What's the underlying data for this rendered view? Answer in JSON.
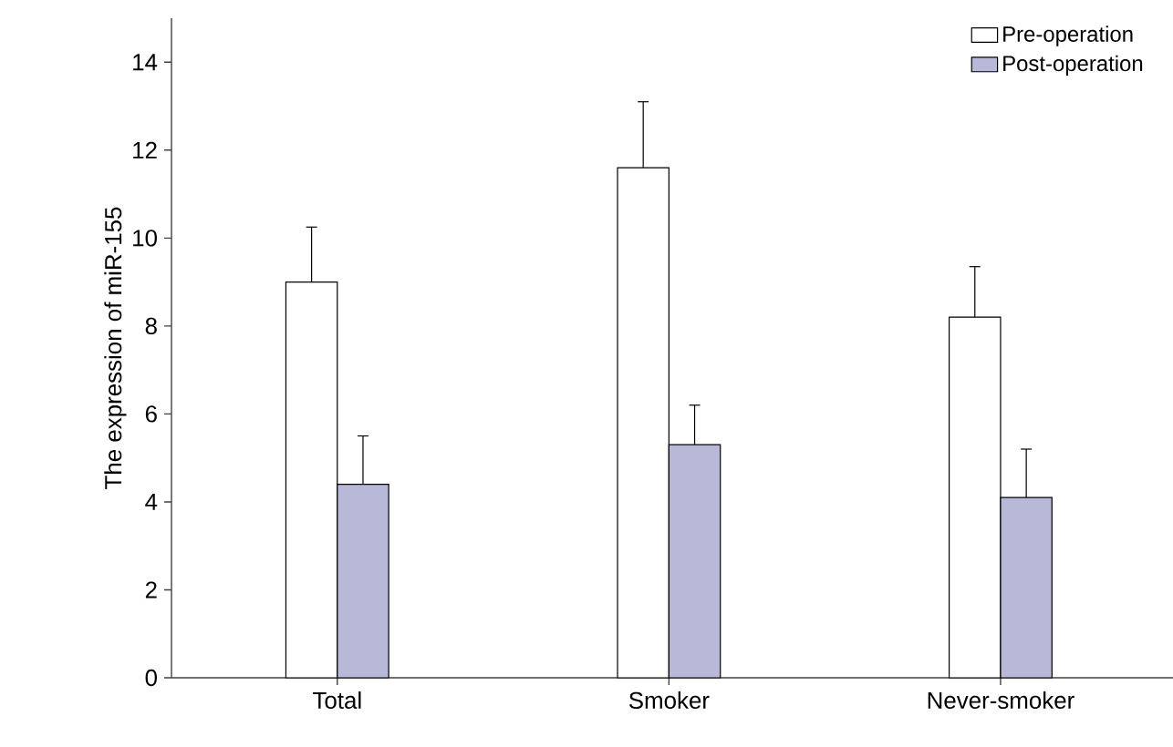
{
  "chart_data": {
    "type": "bar",
    "ylabel": "The expression of miR-155",
    "categories": [
      "Total",
      "Smoker",
      "Never-smoker"
    ],
    "series": [
      {
        "name": "Pre-operation",
        "color": "#ffffff",
        "values": [
          9.0,
          11.6,
          8.2
        ],
        "errors": [
          [
            9.0,
            10.25
          ],
          [
            11.6,
            13.1
          ],
          [
            8.2,
            9.35
          ]
        ]
      },
      {
        "name": "Post-operation",
        "color": "#b8b8d8",
        "values": [
          4.4,
          5.3,
          4.1
        ],
        "errors": [
          [
            4.4,
            5.5
          ],
          [
            5.3,
            6.2
          ],
          [
            4.1,
            5.2
          ]
        ]
      }
    ],
    "ylim": [
      0,
      15
    ],
    "yticks": [
      0,
      2,
      4,
      6,
      8,
      10,
      12,
      14
    ],
    "legend": "top right"
  }
}
